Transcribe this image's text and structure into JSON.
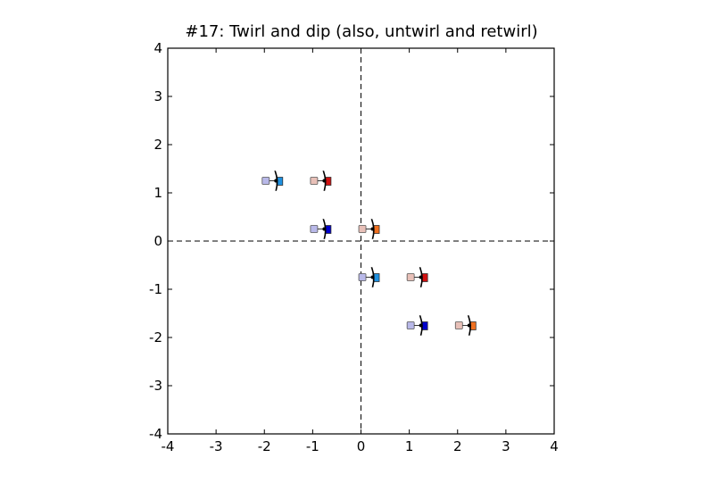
{
  "chart_data": {
    "type": "scatter",
    "title": "#17: Twirl and dip (also, untwirl and retwirl)",
    "xlabel": "",
    "ylabel": "",
    "xlim": [
      -4,
      4
    ],
    "ylim": [
      -4,
      4
    ],
    "xticks": [
      "-4",
      "-3",
      "-2",
      "-1",
      "0",
      "1",
      "2",
      "3",
      "4"
    ],
    "yticks": [
      "-4",
      "-3",
      "-2",
      "-1",
      "0",
      "1",
      "2",
      "3",
      "4"
    ],
    "grid": false,
    "reference_lines": {
      "x": 0,
      "y": 0,
      "style": "dashed"
    },
    "dancers": [
      {
        "x": -1.75,
        "y": 1.25,
        "back_color": "#b8b8e8",
        "front_color": "#1e90e0"
      },
      {
        "x": -0.75,
        "y": 1.25,
        "back_color": "#e8c0b8",
        "front_color": "#d01010"
      },
      {
        "x": -0.75,
        "y": 0.25,
        "back_color": "#b8b8e8",
        "front_color": "#0000cc"
      },
      {
        "x": 0.25,
        "y": 0.25,
        "back_color": "#e8c0b8",
        "front_color": "#f07020"
      },
      {
        "x": 0.25,
        "y": -0.75,
        "back_color": "#b8b8e8",
        "front_color": "#1e90e0"
      },
      {
        "x": 1.25,
        "y": -0.75,
        "back_color": "#e8c0b8",
        "front_color": "#d01010"
      },
      {
        "x": 1.25,
        "y": -1.75,
        "back_color": "#b8b8e8",
        "front_color": "#0000cc"
      },
      {
        "x": 2.25,
        "y": -1.75,
        "back_color": "#e8c0b8",
        "front_color": "#f07020"
      }
    ]
  }
}
